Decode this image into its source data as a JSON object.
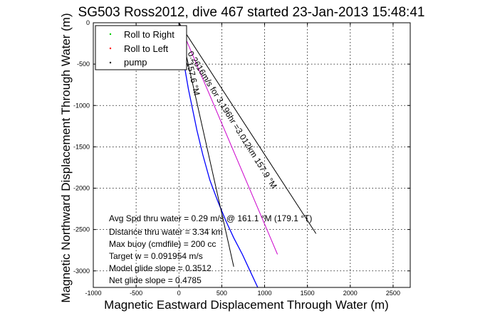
{
  "chart_data": {
    "type": "line",
    "title": "SG503 Ross2012, dive 467 started 23-Jan-2013 15:48:41",
    "xlabel": "Magnetic Eastward Displacement Through Water (m)",
    "ylabel": "Magnetic Northward Displacement Through Water (m)",
    "xlim": [
      -1000,
      2700
    ],
    "ylim": [
      -3200,
      0
    ],
    "xticks": [
      -1000,
      -500,
      0,
      500,
      1000,
      1500,
      2000,
      2500
    ],
    "yticks": [
      0,
      -500,
      -1000,
      -1500,
      -2000,
      -2500,
      -3000
    ],
    "grid": true,
    "legend_position": "top-left",
    "legend": [
      {
        "label": "Roll to Right",
        "color": "#00cc00",
        "marker": "dot"
      },
      {
        "label": "Roll to Left",
        "color": "#ff0000",
        "marker": "dot"
      },
      {
        "label": "pump",
        "color": "#000000",
        "marker": "dot"
      }
    ],
    "series": [
      {
        "color": "#0000ff",
        "points": [
          [
            0,
            0
          ],
          [
            25,
            -200
          ],
          [
            60,
            -500
          ],
          [
            110,
            -800
          ],
          [
            150,
            -1000
          ],
          [
            210,
            -1300
          ],
          [
            280,
            -1600
          ],
          [
            360,
            -1900
          ],
          [
            450,
            -2150
          ],
          [
            550,
            -2400
          ],
          [
            640,
            -2600
          ],
          [
            740,
            -2800
          ],
          [
            830,
            -3000
          ],
          [
            920,
            -3200
          ]
        ]
      },
      {
        "color": "#cc00cc",
        "points": [
          [
            0,
            0
          ],
          [
            1150,
            -2800
          ]
        ]
      },
      {
        "color": "#000000",
        "points": [
          [
            0,
            0
          ],
          [
            1600,
            -2550
          ]
        ]
      },
      {
        "color": "#000000",
        "points": [
          [
            0,
            0
          ],
          [
            640,
            -2950
          ]
        ]
      }
    ],
    "annotations": {
      "line_label": "0.2616m/s for 3.196hr =3.012km 157.9 °M",
      "short_label": "157.6 °M",
      "stats": [
        "Avg Spd thru water =  0.29 m/s @ 161.1    °M (179.1 °T)",
        "Distance thru water =  3.34 km",
        "Max buoy (cmdfile) = 200 cc",
        "Target w = 0.091954 m/s",
        "Model glide slope = 0.3512",
        "Net glide slope = 0.4785"
      ]
    }
  }
}
